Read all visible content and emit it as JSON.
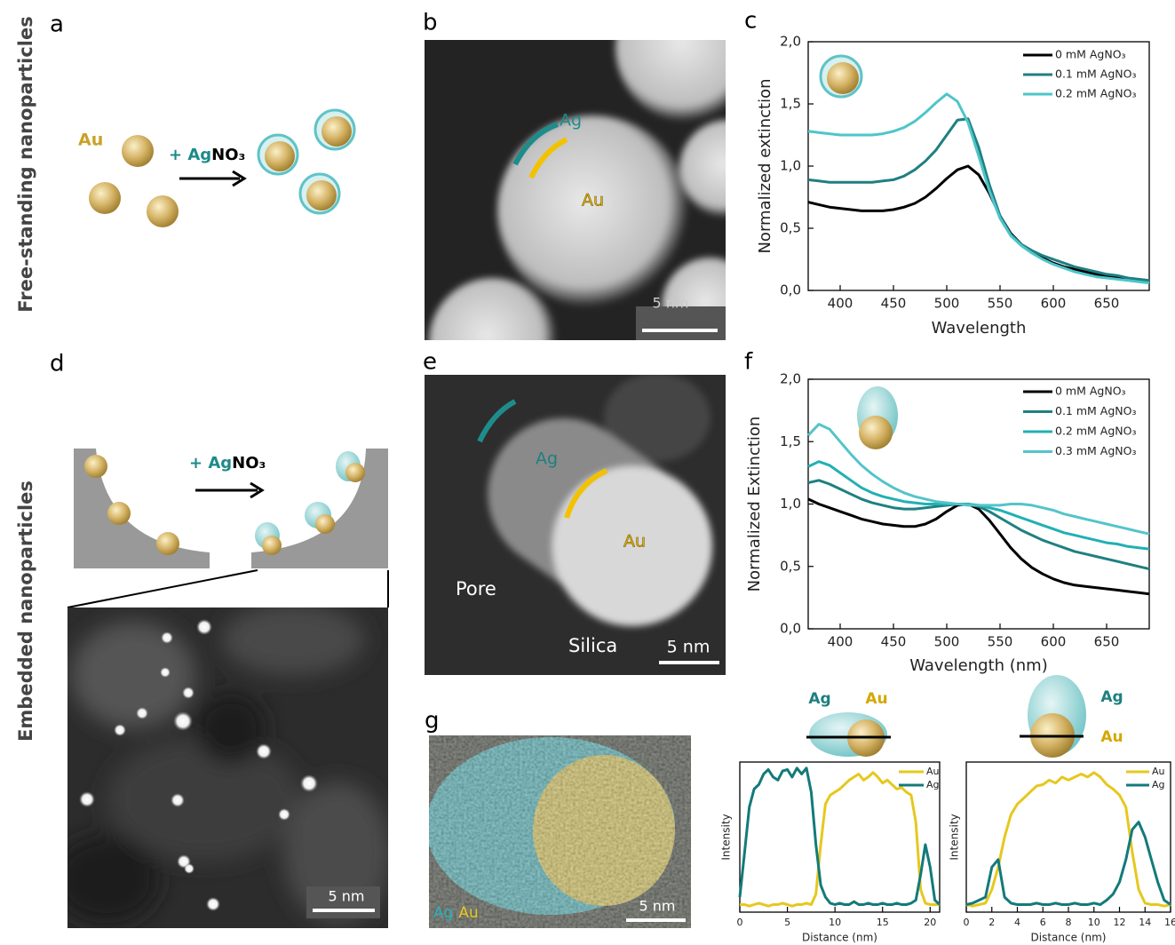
{
  "panels": [
    "a",
    "b",
    "c",
    "d",
    "e",
    "f",
    "g"
  ],
  "rows": [
    "Free-standing nanoparticles",
    "Embedded nanoparticles"
  ],
  "schematic_a": {
    "au": "Au",
    "reagent_ag": "+ Ag",
    "reagent_no3": "NO₃"
  },
  "schematic_d": {
    "reagent_ag": "+ Ag",
    "reagent_no3": "NO₃"
  },
  "image_b": {
    "ag": "Ag",
    "au": "Au",
    "scale": "5 nm"
  },
  "image_d": {
    "scale": "5 nm"
  },
  "image_e": {
    "ag": "Ag",
    "au": "Au",
    "pore": "Pore",
    "silica": "Silica",
    "scale": "5 nm"
  },
  "image_g": {
    "ag": "Ag",
    "au": "Au",
    "scale": "5 nm"
  },
  "profile_insets": [
    {
      "ag": "Ag",
      "au": "Au"
    },
    {
      "ag": "Ag",
      "au": "Au"
    }
  ],
  "chart_data": [
    {
      "type": "line",
      "xlabel": "Wavelength",
      "ylabel": "Normalized extinction",
      "x": [
        370,
        380,
        390,
        400,
        410,
        420,
        430,
        440,
        450,
        460,
        470,
        480,
        490,
        500,
        510,
        520,
        530,
        540,
        550,
        560,
        570,
        580,
        590,
        600,
        610,
        620,
        630,
        640,
        650,
        660,
        670,
        680,
        690
      ],
      "xlim": [
        370,
        690
      ],
      "xticks": [
        400,
        450,
        500,
        550,
        600,
        650
      ],
      "ylim": [
        0,
        2
      ],
      "yticks": [
        {
          "value": 0,
          "label": "0,0"
        },
        {
          "value": 0.5,
          "label": "0,5"
        },
        {
          "value": 1,
          "label": "1,0"
        },
        {
          "value": 1.5,
          "label": "1,5"
        },
        {
          "value": 2,
          "label": "2,0"
        }
      ],
      "legend": "upper right",
      "series": [
        {
          "name": "0 mM AgNO₃",
          "color": "#000000",
          "values": [
            0.71,
            0.69,
            0.67,
            0.66,
            0.65,
            0.64,
            0.64,
            0.64,
            0.65,
            0.67,
            0.7,
            0.75,
            0.82,
            0.9,
            0.97,
            1.0,
            0.93,
            0.78,
            0.6,
            0.46,
            0.37,
            0.31,
            0.26,
            0.22,
            0.19,
            0.17,
            0.15,
            0.13,
            0.12,
            0.1,
            0.09,
            0.08,
            0.07
          ]
        },
        {
          "name": "0.1 mM AgNO₃",
          "color": "#1f7f80",
          "values": [
            0.89,
            0.88,
            0.87,
            0.87,
            0.87,
            0.87,
            0.87,
            0.88,
            0.89,
            0.92,
            0.97,
            1.04,
            1.13,
            1.25,
            1.37,
            1.38,
            1.15,
            0.85,
            0.6,
            0.45,
            0.37,
            0.32,
            0.28,
            0.25,
            0.22,
            0.19,
            0.17,
            0.15,
            0.13,
            0.12,
            0.1,
            0.09,
            0.08
          ]
        },
        {
          "name": "0.2 mM AgNO₃",
          "color": "#4ec5c9",
          "values": [
            1.28,
            1.27,
            1.26,
            1.25,
            1.25,
            1.25,
            1.25,
            1.26,
            1.28,
            1.31,
            1.36,
            1.43,
            1.51,
            1.58,
            1.52,
            1.35,
            1.08,
            0.8,
            0.58,
            0.44,
            0.36,
            0.3,
            0.25,
            0.21,
            0.18,
            0.15,
            0.13,
            0.11,
            0.1,
            0.09,
            0.08,
            0.07,
            0.06
          ]
        }
      ]
    },
    {
      "type": "line",
      "xlabel": "Wavelength (nm)",
      "ylabel": "Normalized Extinction",
      "x": [
        370,
        380,
        390,
        400,
        410,
        420,
        430,
        440,
        450,
        460,
        470,
        480,
        490,
        500,
        510,
        520,
        530,
        540,
        550,
        560,
        570,
        580,
        590,
        600,
        610,
        620,
        630,
        640,
        650,
        660,
        670,
        680,
        690
      ],
      "xlim": [
        370,
        690
      ],
      "xticks": [
        400,
        450,
        500,
        550,
        600,
        650
      ],
      "ylim": [
        0,
        2
      ],
      "yticks": [
        {
          "value": 0,
          "label": "0,0"
        },
        {
          "value": 0.5,
          "label": "0,5"
        },
        {
          "value": 1,
          "label": "1,0"
        },
        {
          "value": 1.5,
          "label": "1,5"
        },
        {
          "value": 2,
          "label": "2,0"
        }
      ],
      "legend": "upper right",
      "series": [
        {
          "name": "0 mM AgNO₃",
          "color": "#000000",
          "values": [
            1.04,
            1.0,
            0.97,
            0.94,
            0.91,
            0.88,
            0.86,
            0.84,
            0.83,
            0.82,
            0.82,
            0.84,
            0.88,
            0.94,
            0.99,
            1.0,
            0.96,
            0.87,
            0.76,
            0.65,
            0.56,
            0.49,
            0.44,
            0.4,
            0.37,
            0.35,
            0.34,
            0.33,
            0.32,
            0.31,
            0.3,
            0.29,
            0.28
          ]
        },
        {
          "name": "0.1 mM AgNO₃",
          "color": "#1f8080",
          "values": [
            1.17,
            1.19,
            1.16,
            1.12,
            1.08,
            1.04,
            1.01,
            0.99,
            0.97,
            0.96,
            0.96,
            0.97,
            0.98,
            0.99,
            1.0,
            1.0,
            0.98,
            0.94,
            0.89,
            0.84,
            0.79,
            0.75,
            0.71,
            0.68,
            0.65,
            0.62,
            0.6,
            0.58,
            0.56,
            0.54,
            0.52,
            0.5,
            0.48
          ]
        },
        {
          "name": "0.2 mM AgNO₃",
          "color": "#21b0b4",
          "values": [
            1.3,
            1.34,
            1.31,
            1.25,
            1.19,
            1.13,
            1.09,
            1.06,
            1.04,
            1.02,
            1.01,
            1.0,
            1.0,
            1.0,
            1.0,
            1.0,
            0.99,
            0.97,
            0.95,
            0.92,
            0.89,
            0.86,
            0.83,
            0.8,
            0.77,
            0.75,
            0.73,
            0.71,
            0.69,
            0.68,
            0.66,
            0.65,
            0.64
          ]
        },
        {
          "name": "0.3 mM AgNO₃",
          "color": "#54c4ca",
          "values": [
            1.55,
            1.64,
            1.6,
            1.5,
            1.4,
            1.31,
            1.24,
            1.18,
            1.13,
            1.09,
            1.06,
            1.04,
            1.02,
            1.01,
            1.0,
            0.99,
            0.99,
            0.99,
            0.99,
            1.0,
            1.0,
            0.99,
            0.97,
            0.95,
            0.92,
            0.9,
            0.88,
            0.86,
            0.84,
            0.82,
            0.8,
            0.78,
            0.76
          ]
        }
      ]
    },
    {
      "type": "line",
      "xlabel": "Distance (nm)",
      "ylabel": "Intensity",
      "x": [
        0,
        0.5,
        1,
        1.5,
        2,
        2.5,
        3,
        3.5,
        4,
        4.5,
        5,
        5.5,
        6,
        6.5,
        7,
        7.5,
        8,
        8.5,
        9,
        9.5,
        10,
        10.5,
        11,
        11.5,
        12,
        12.5,
        13,
        13.5,
        14,
        14.5,
        15,
        15.5,
        16,
        16.5,
        17,
        17.5,
        18,
        18.5,
        19,
        19.5,
        20,
        20.5,
        21
      ],
      "xlim": [
        0,
        21
      ],
      "xticks": [
        0,
        5,
        10,
        15,
        20
      ],
      "ylim": [
        0,
        1
      ],
      "legend": "upper right",
      "series": [
        {
          "name": "Au",
          "color": "#e6c81e",
          "values": [
            0.05,
            0.05,
            0.04,
            0.05,
            0.06,
            0.05,
            0.04,
            0.05,
            0.05,
            0.06,
            0.05,
            0.04,
            0.05,
            0.05,
            0.06,
            0.05,
            0.12,
            0.45,
            0.72,
            0.78,
            0.8,
            0.82,
            0.85,
            0.88,
            0.9,
            0.92,
            0.88,
            0.9,
            0.93,
            0.9,
            0.86,
            0.88,
            0.85,
            0.82,
            0.83,
            0.8,
            0.78,
            0.6,
            0.15,
            0.06,
            0.05,
            0.05,
            0.05
          ]
        },
        {
          "name": "Ag",
          "color": "#137a7a",
          "values": [
            0.1,
            0.4,
            0.7,
            0.82,
            0.85,
            0.92,
            0.95,
            0.9,
            0.88,
            0.94,
            0.95,
            0.9,
            0.96,
            0.92,
            0.96,
            0.8,
            0.45,
            0.18,
            0.1,
            0.06,
            0.05,
            0.06,
            0.05,
            0.05,
            0.07,
            0.05,
            0.05,
            0.06,
            0.05,
            0.05,
            0.06,
            0.05,
            0.05,
            0.06,
            0.05,
            0.05,
            0.06,
            0.08,
            0.25,
            0.45,
            0.3,
            0.08,
            0.05
          ]
        }
      ]
    },
    {
      "type": "line",
      "xlabel": "Distance (nm)",
      "ylabel": "Intensity",
      "x": [
        0,
        0.5,
        1,
        1.5,
        2,
        2.5,
        3,
        3.5,
        4,
        4.5,
        5,
        5.5,
        6,
        6.5,
        7,
        7.5,
        8,
        8.5,
        9,
        9.5,
        10,
        10.5,
        11,
        11.5,
        12,
        12.5,
        13,
        13.5,
        14,
        14.5,
        15,
        15.5,
        16
      ],
      "xlim": [
        0,
        16
      ],
      "xticks": [
        0,
        2,
        4,
        6,
        8,
        10,
        12,
        14,
        16
      ],
      "ylim": [
        0,
        1
      ],
      "legend": "upper right",
      "series": [
        {
          "name": "Au",
          "color": "#e6c81e",
          "values": [
            0.05,
            0.04,
            0.05,
            0.06,
            0.15,
            0.3,
            0.5,
            0.65,
            0.72,
            0.76,
            0.8,
            0.84,
            0.85,
            0.88,
            0.86,
            0.9,
            0.88,
            0.9,
            0.92,
            0.9,
            0.93,
            0.9,
            0.85,
            0.82,
            0.78,
            0.7,
            0.4,
            0.15,
            0.06,
            0.05,
            0.05,
            0.04,
            0.05
          ]
        },
        {
          "name": "Ag",
          "color": "#137a7a",
          "values": [
            0.05,
            0.06,
            0.08,
            0.1,
            0.3,
            0.35,
            0.1,
            0.06,
            0.05,
            0.05,
            0.05,
            0.06,
            0.05,
            0.05,
            0.06,
            0.05,
            0.05,
            0.06,
            0.05,
            0.05,
            0.06,
            0.05,
            0.08,
            0.12,
            0.2,
            0.35,
            0.55,
            0.6,
            0.5,
            0.35,
            0.2,
            0.08,
            0.05
          ]
        }
      ]
    }
  ]
}
